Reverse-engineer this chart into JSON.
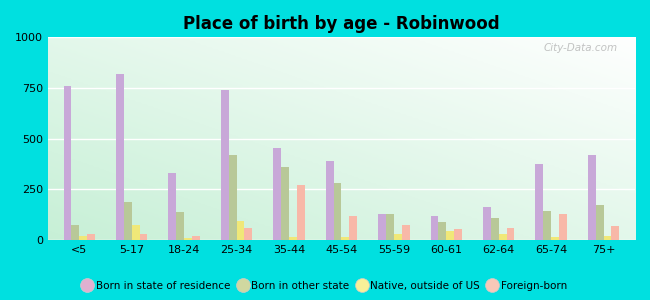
{
  "title": "Place of birth by age - Robinwood",
  "categories": [
    "<5",
    "5-17",
    "18-24",
    "25-34",
    "35-44",
    "45-54",
    "55-59",
    "60-61",
    "62-64",
    "65-74",
    "75+"
  ],
  "series": {
    "Born in state of residence": [
      760,
      820,
      330,
      740,
      455,
      390,
      130,
      120,
      165,
      375,
      420
    ],
    "Born in other state": [
      75,
      190,
      140,
      420,
      360,
      280,
      130,
      90,
      110,
      145,
      175
    ],
    "Native, outside of US": [
      20,
      75,
      10,
      95,
      15,
      15,
      30,
      45,
      30,
      15,
      20
    ],
    "Foreign-born": [
      30,
      30,
      20,
      60,
      270,
      120,
      75,
      55,
      60,
      130,
      70
    ]
  },
  "colors": {
    "Born in state of residence": "#c8a8d8",
    "Born in other state": "#b8c898",
    "Native, outside of US": "#f0e878",
    "Foreign-born": "#f8b8a8"
  },
  "legend_colors": {
    "Born in state of residence": "#e0b0d0",
    "Born in other state": "#d0d8a0",
    "Native, outside of US": "#f8f098",
    "Foreign-born": "#f8c8b8"
  },
  "ylim": [
    0,
    1000
  ],
  "yticks": [
    0,
    250,
    500,
    750,
    1000
  ],
  "fig_background": "#00e0e0",
  "bar_width": 0.15,
  "watermark": "City-Data.com"
}
